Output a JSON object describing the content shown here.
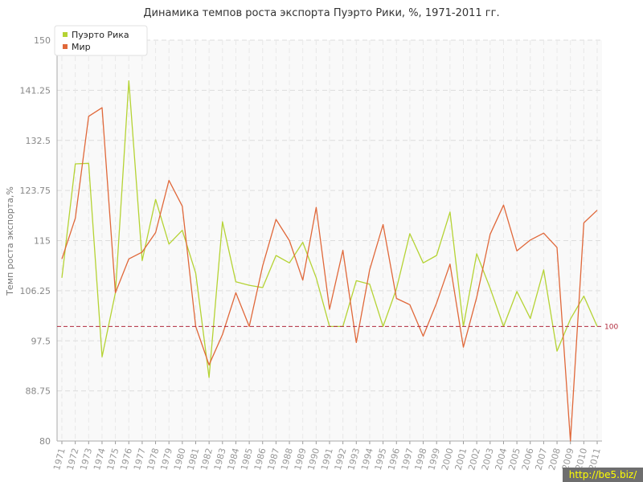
{
  "chart_data": {
    "type": "line",
    "title": "Динамика темпов роста экспорта Пуэрто Рики, %, 1971-2011 гг.",
    "ylabel": "Темп роста экспорта,%",
    "xlabel": "",
    "ylim": [
      80,
      150
    ],
    "yticks": [
      "80",
      "88.75",
      "97.5",
      "106.25",
      "115",
      "123.75",
      "132.5",
      "141.25",
      "150"
    ],
    "x": [
      "1971",
      "1972",
      "1973",
      "1974",
      "1975",
      "1976",
      "1977",
      "1978",
      "1979",
      "1980",
      "1981",
      "1982",
      "1983",
      "1984",
      "1985",
      "1986",
      "1987",
      "1988",
      "1989",
      "1990",
      "1991",
      "1992",
      "1993",
      "1994",
      "1995",
      "1996",
      "1997",
      "1998",
      "1999",
      "2000",
      "2001",
      "2002",
      "2003",
      "2004",
      "2005",
      "2006",
      "2007",
      "2008",
      "2009",
      "2010",
      "2011"
    ],
    "series": [
      {
        "name": "Пуэрто Рика",
        "color": "#b5d334",
        "values": [
          108.5,
          128.4,
          128.5,
          94.7,
          105.9,
          142.9,
          111.5,
          122.2,
          114.4,
          116.8,
          109.3,
          91.1,
          118.3,
          107.8,
          107.2,
          106.8,
          112.4,
          111.1,
          114.7,
          108.5,
          100.0,
          100.0,
          108.0,
          107.4,
          100.0,
          106.6,
          116.2,
          111.1,
          112.4,
          120.0,
          100.0,
          112.7,
          106.7,
          100.0,
          106.1,
          101.4,
          109.9,
          95.7,
          101.3,
          105.3,
          100.0
        ]
      },
      {
        "name": "Мир",
        "color": "#e0683a",
        "values": [
          111.8,
          118.9,
          136.7,
          138.2,
          105.9,
          111.8,
          113.0,
          116.4,
          125.5,
          121.0,
          100.0,
          93.3,
          98.6,
          105.9,
          100.0,
          110.6,
          118.7,
          115.0,
          108.1,
          120.8,
          103.0,
          113.3,
          97.2,
          109.9,
          117.8,
          104.9,
          103.8,
          98.3,
          104.1,
          110.9,
          96.4,
          105.1,
          116.1,
          121.2,
          113.2,
          115.1,
          116.3,
          113.8,
          80.0,
          118.1,
          120.3
        ]
      }
    ],
    "reference_line": {
      "value": 100,
      "label": "100",
      "color": "#b02a3c"
    },
    "grid": true,
    "legend_position": "top-left"
  },
  "watermark": "http://be5.biz/"
}
